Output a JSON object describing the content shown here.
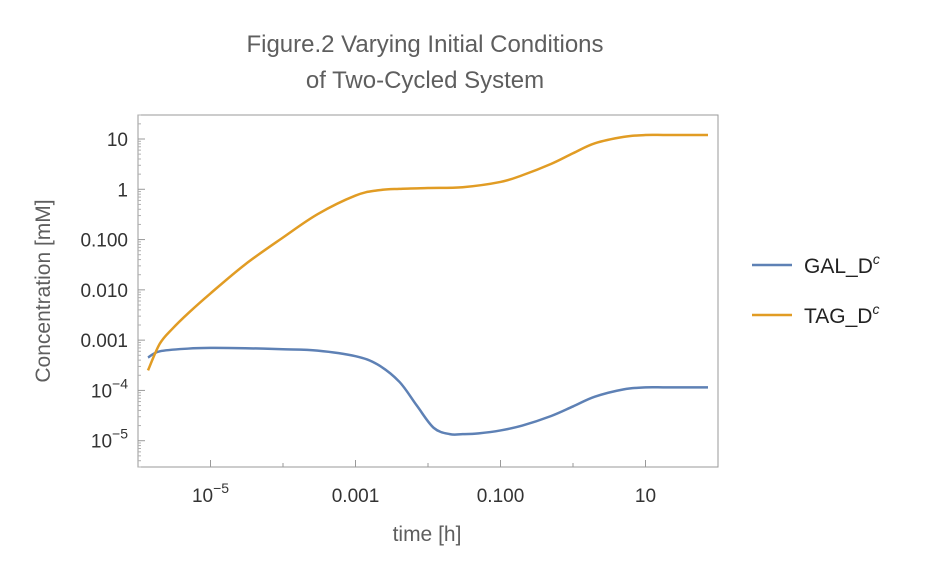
{
  "chart_data": {
    "type": "line",
    "title": "Figure.2 Varying Initial Conditions",
    "subtitle": "of Two-Cycled System",
    "xlabel": "time [h]",
    "ylabel": "Concentration [mM]",
    "x_scale": "log",
    "y_scale": "log",
    "xlim": [
      1e-06,
      100
    ],
    "ylim": [
      3e-06,
      30
    ],
    "x_ticks": [
      {
        "value": 1e-05,
        "label": "10",
        "exp": "−5"
      },
      {
        "value": 0.001,
        "label": "0.001",
        "exp": ""
      },
      {
        "value": 0.1,
        "label": "0.100",
        "exp": ""
      },
      {
        "value": 10,
        "label": "10",
        "exp": ""
      }
    ],
    "y_ticks": [
      {
        "value": 10,
        "label": "10",
        "exp": ""
      },
      {
        "value": 1,
        "label": "1",
        "exp": ""
      },
      {
        "value": 0.1,
        "label": "0.100",
        "exp": ""
      },
      {
        "value": 0.01,
        "label": "0.010",
        "exp": ""
      },
      {
        "value": 0.001,
        "label": "0.001",
        "exp": ""
      },
      {
        "value": 0.0001,
        "label": "10",
        "exp": "−4"
      },
      {
        "value": 1e-05,
        "label": "10",
        "exp": "−5"
      }
    ],
    "grid": false,
    "legend_position": "right",
    "series": [
      {
        "name": "GAL_D",
        "name_sup": "c",
        "color": "#5e81b5",
        "x": [
          1e-06,
          2e-06,
          5e-06,
          1e-05,
          3e-05,
          0.0001,
          0.0003,
          0.001,
          0.002,
          0.004,
          0.007,
          0.012,
          0.02,
          0.03,
          0.05,
          0.1,
          0.2,
          0.5,
          1,
          2,
          5,
          10,
          20,
          100
        ],
        "y": [
          0.00045,
          0.0006,
          0.00068,
          0.0007,
          0.00069,
          0.00066,
          0.00062,
          0.00048,
          0.00033,
          0.00015,
          5e-05,
          1.8e-05,
          1.35e-05,
          1.35e-05,
          1.4e-05,
          1.6e-05,
          2e-05,
          3.1e-05,
          4.8e-05,
          7.5e-05,
          0.000105,
          0.000115,
          0.000115,
          0.000115
        ]
      },
      {
        "name": "TAG_D",
        "name_sup": "c",
        "color": "#e19c24",
        "x": [
          1e-06,
          2e-06,
          3e-06,
          5e-06,
          1e-05,
          3e-05,
          0.0001,
          0.0003,
          0.001,
          0.002,
          0.004,
          0.01,
          0.03,
          0.1,
          0.2,
          0.5,
          1,
          2,
          5,
          10,
          20,
          100
        ],
        "y": [
          0.00025,
          0.00085,
          0.0017,
          0.0035,
          0.0085,
          0.032,
          0.11,
          0.32,
          0.75,
          0.95,
          1.02,
          1.06,
          1.1,
          1.4,
          1.9,
          3.2,
          5.2,
          8.2,
          11,
          12,
          12,
          12
        ]
      }
    ]
  }
}
